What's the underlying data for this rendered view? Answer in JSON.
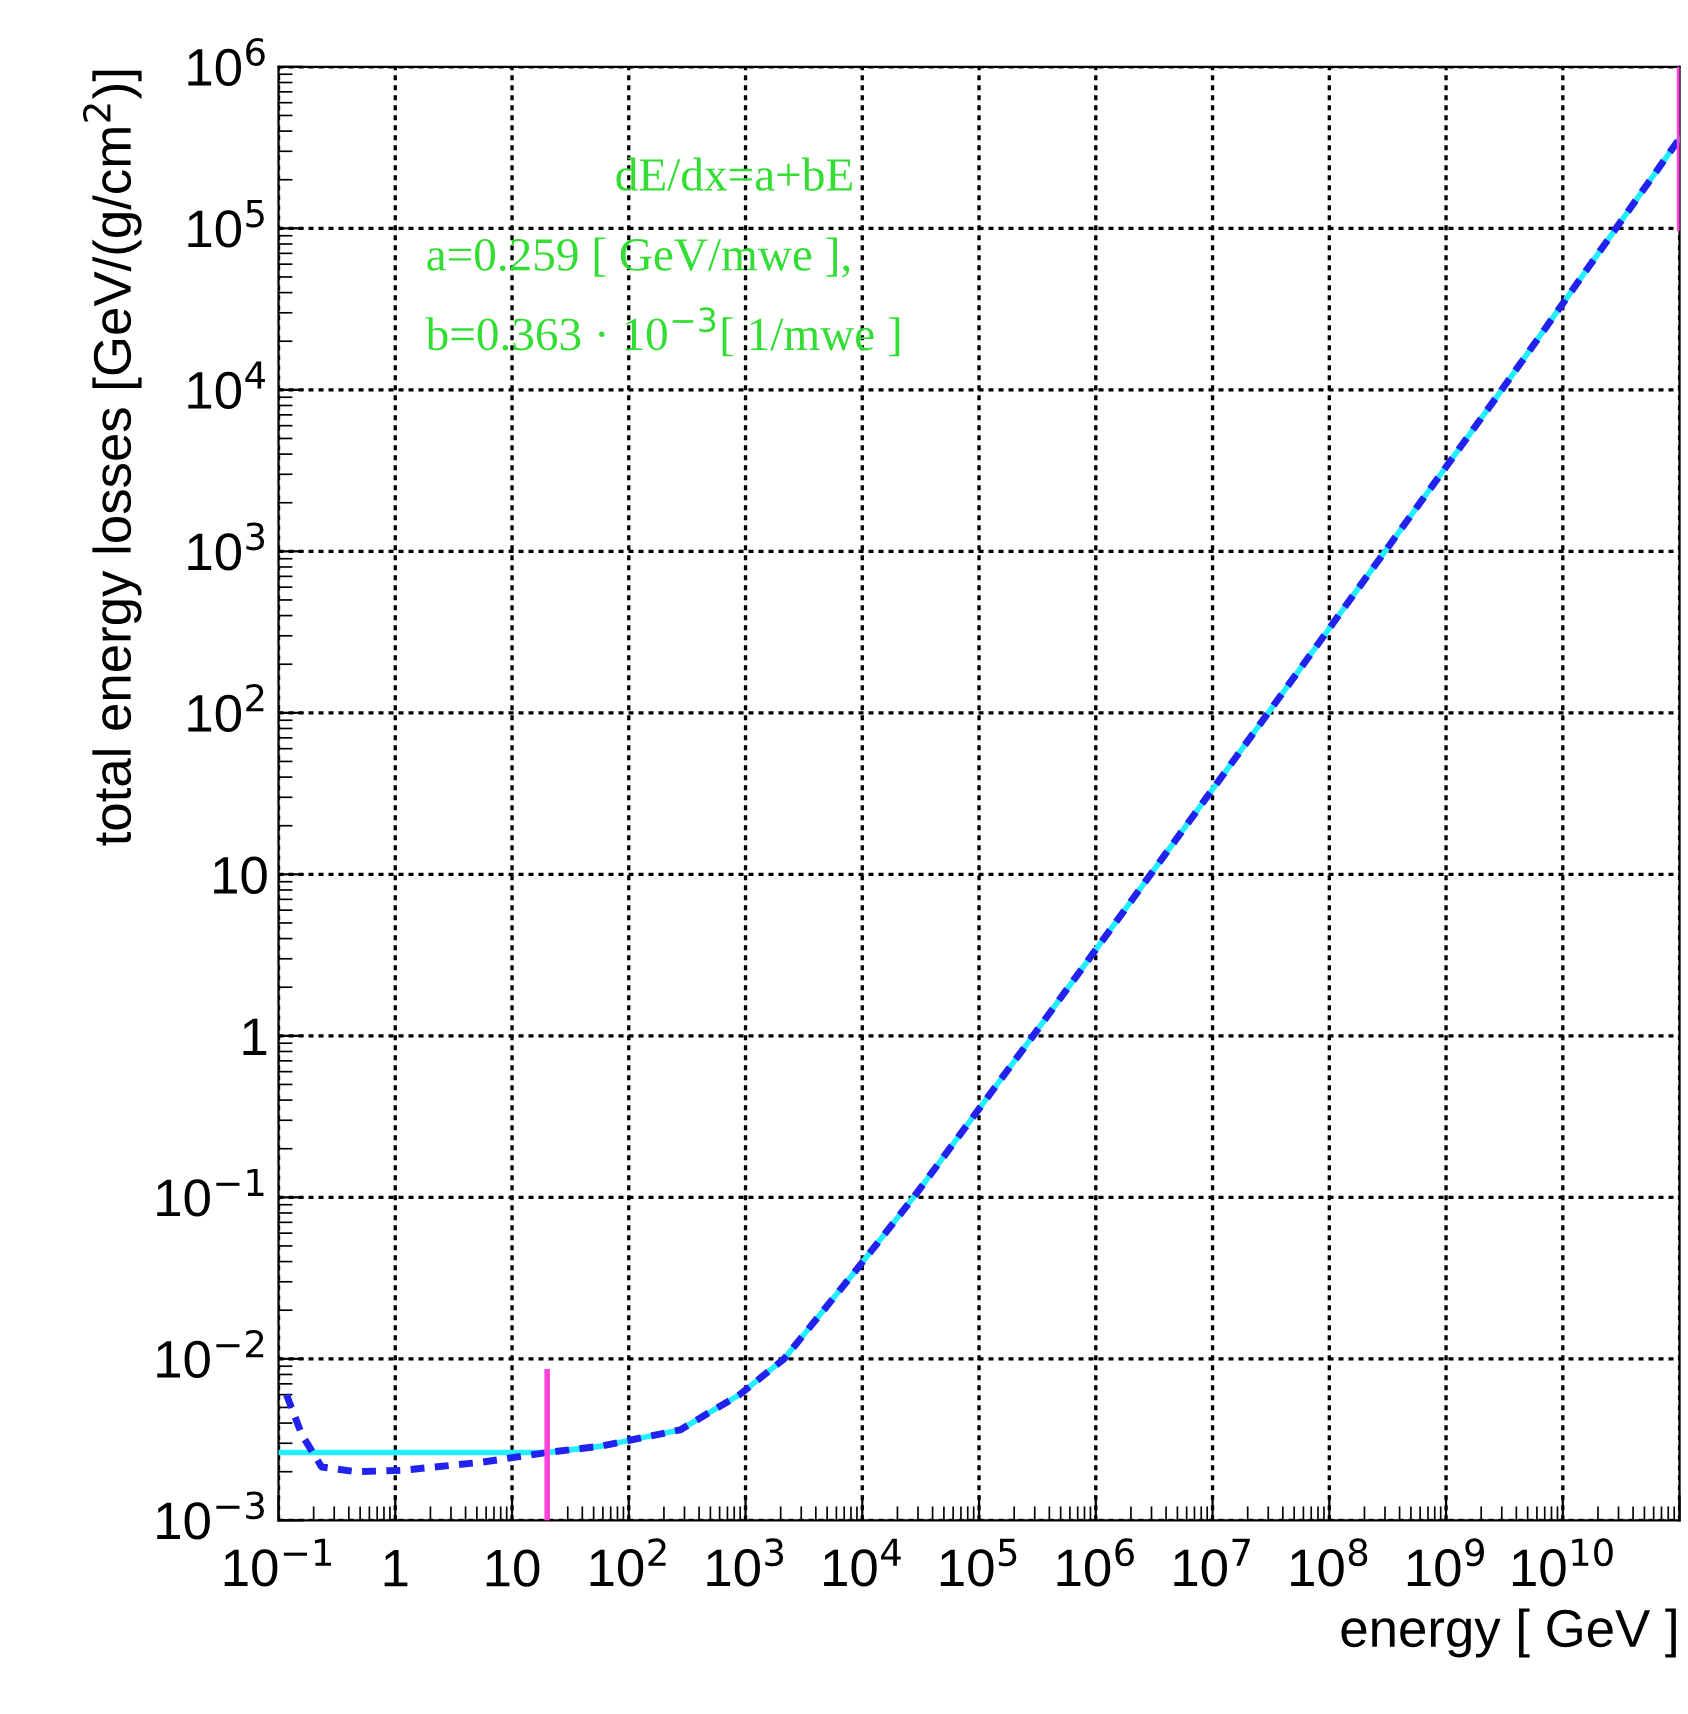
{
  "chart_data": {
    "type": "line",
    "xlabel": "energy [ GeV ]",
    "ylabel": "total energy losses [GeV/(g/cm$^{2}$)]",
    "log": "xy",
    "grid": true,
    "legend": false,
    "xlim": [
      0.1,
      100000000000.0
    ],
    "ylim": [
      0.001,
      1000000
    ],
    "xticks": [
      {
        "value": 0.1,
        "label": "10$^{−1}$"
      },
      1,
      10,
      {
        "value": 100,
        "label": "10$^{2}$"
      },
      {
        "value": 1000,
        "label": "10$^{3}$"
      },
      {
        "value": 10000,
        "label": "10$^{4}$"
      },
      {
        "value": 100000,
        "label": "10$^{5}$"
      },
      {
        "value": 1000000,
        "label": "10$^{6}$"
      },
      {
        "value": 10000000,
        "label": "10$^{7}$"
      },
      {
        "value": 100000000,
        "label": "10$^{8}$"
      },
      {
        "value": 1000000000,
        "label": "10$^{9}$"
      },
      {
        "value": 10000000000,
        "label": "10$^{10}$"
      },
      {
        "value": 100000000000,
        "label": null
      }
    ],
    "yticks": [
      {
        "value": 0.001,
        "label": "10$^{−3}$"
      },
      {
        "value": 0.01,
        "label": "10$^{−2}$"
      },
      {
        "value": 0.1,
        "label": "10$^{−1}$"
      },
      1,
      10,
      {
        "value": 100,
        "label": "10$^{2}$"
      },
      {
        "value": 1000,
        "label": "10$^{3}$"
      },
      {
        "value": 10000,
        "label": "10$^{4}$"
      },
      {
        "value": 100000,
        "label": "10$^{5}$"
      },
      {
        "value": 1000000,
        "label": "10$^{6}$"
      }
    ],
    "annotations": [
      "dE/dx=a+bE",
      "a=0.259 [ GeV/mwe ],",
      "b=0.363 · 10$^{−3}$[ 1/mwe ]"
    ],
    "series": [
      {
        "color": "#22eeff",
        "line_style": "solid",
        "x": [
          0.1,
          1,
          20,
          58,
          275,
          890,
          2140,
          9300,
          27500,
          290000,
          30000000,
          3000000000,
          100000000000
        ],
        "values": [
          0.00263,
          0.00263,
          0.00263,
          0.00288,
          0.00363,
          0.006,
          0.01,
          0.037,
          0.1,
          1,
          100,
          10000,
          360000
        ]
      },
      {
        "color": "#2222ee",
        "line_style": "dashed",
        "x": [
          0.117,
          0.158,
          0.234,
          0.457,
          1.15,
          5.5,
          20,
          58,
          275,
          890,
          2140,
          9300,
          27500,
          290000,
          30000000,
          3000000000,
          100000000000
        ],
        "values": [
          0.006,
          0.0034,
          0.00214,
          0.002,
          0.00204,
          0.00229,
          0.00263,
          0.00288,
          0.00363,
          0.006,
          0.01,
          0.037,
          0.1,
          1,
          100,
          10000,
          360000
        ]
      },
      {
        "color": "#ff44dd",
        "line_style": "solid",
        "x": [
          20,
          20
        ],
        "values": [
          0.0083,
          0.001
        ]
      },
      {
        "color": "#ff44dd",
        "line_style": "solid",
        "x": [
          100000000000,
          100000000000
        ],
        "values": [
          1000000,
          100000
        ]
      }
    ]
  }
}
